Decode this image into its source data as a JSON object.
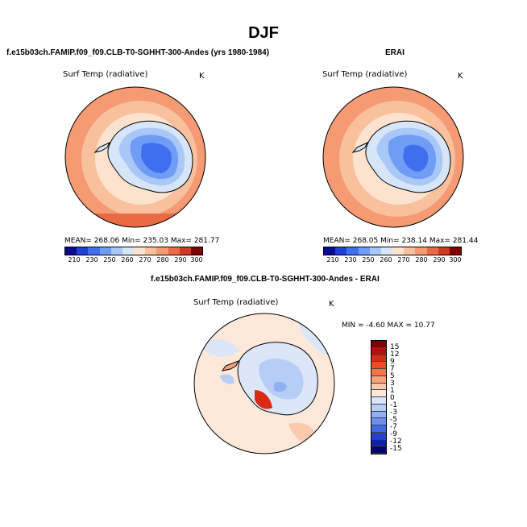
{
  "main_title": "DJF",
  "panels": [
    {
      "title": "f.e15b03ch.FAMIP.f09_f09.CLB-T0-SGHHT-300-Andes (yrs 1980-1984)",
      "field": "Surf Temp (radiative)",
      "units": "K",
      "stats": "MEAN= 268.06   Min= 235.03   Max= 281.77"
    },
    {
      "title": "ERAI",
      "field": "Surf Temp (radiative)",
      "units": "K",
      "stats": "MEAN= 268.05   Min= 238.14   Max= 281.44"
    },
    {
      "title": "f.e15b03ch.FAMIP.f09_f09.CLB-T0-SGHHT-300-Andes - ERAI",
      "field": "Surf Temp (radiative)",
      "units": "K",
      "stats": "MIN =   -4.60  MAX =   10.77"
    }
  ],
  "chart_data": [
    {
      "type": "heatmap",
      "projection": "south-polar-stereographic",
      "title": "f.e15b03ch.FAMIP.f09_f09.CLB-T0-SGHHT-300-Andes (yrs 1980-1984)",
      "variable": "Surf Temp (radiative)",
      "units": "K",
      "mean": 268.06,
      "min": 235.03,
      "max": 281.77,
      "colorbar_levels": [
        "210",
        "230",
        "250",
        "260",
        "270",
        "280",
        "290",
        "300"
      ],
      "colorbar_colors": [
        "#0a0a8c",
        "#1f3fd6",
        "#3f6fef",
        "#6f9cf5",
        "#a9c8f7",
        "#d6e6f8",
        "#fde3cf",
        "#f9c09e",
        "#f59a72",
        "#ea6a45",
        "#d03a22",
        "#7e0000"
      ]
    },
    {
      "type": "heatmap",
      "projection": "south-polar-stereographic",
      "title": "ERAI",
      "variable": "Surf Temp (radiative)",
      "units": "K",
      "mean": 268.05,
      "min": 238.14,
      "max": 281.44,
      "colorbar_levels": [
        "210",
        "230",
        "250",
        "260",
        "270",
        "280",
        "290",
        "300"
      ],
      "colorbar_colors": [
        "#0a0a8c",
        "#1f3fd6",
        "#3f6fef",
        "#6f9cf5",
        "#a9c8f7",
        "#d6e6f8",
        "#fde3cf",
        "#f9c09e",
        "#f59a72",
        "#ea6a45",
        "#d03a22",
        "#7e0000"
      ]
    },
    {
      "type": "heatmap",
      "projection": "south-polar-stereographic",
      "title": "f.e15b03ch.FAMIP.f09_f09.CLB-T0-SGHHT-300-Andes - ERAI",
      "variable": "Surf Temp (radiative)",
      "units": "K",
      "min": -4.6,
      "max": 10.77,
      "colorbar_levels": [
        "15",
        "12",
        "9",
        "7",
        "5",
        "3",
        "1",
        "0",
        "-1",
        "-3",
        "-5",
        "-7",
        "-9",
        "-12",
        "-15"
      ],
      "colorbar_colors": [
        "#7e0000",
        "#b30f0f",
        "#d92a16",
        "#ef4b22",
        "#f5734a",
        "#f7a27c",
        "#fbc9ae",
        "#fde8da",
        "#dbe7f8",
        "#b6cdf6",
        "#8fb0f2",
        "#6a8fed",
        "#4469e4",
        "#2340d0",
        "#0f1fa6",
        "#05056e"
      ]
    }
  ]
}
